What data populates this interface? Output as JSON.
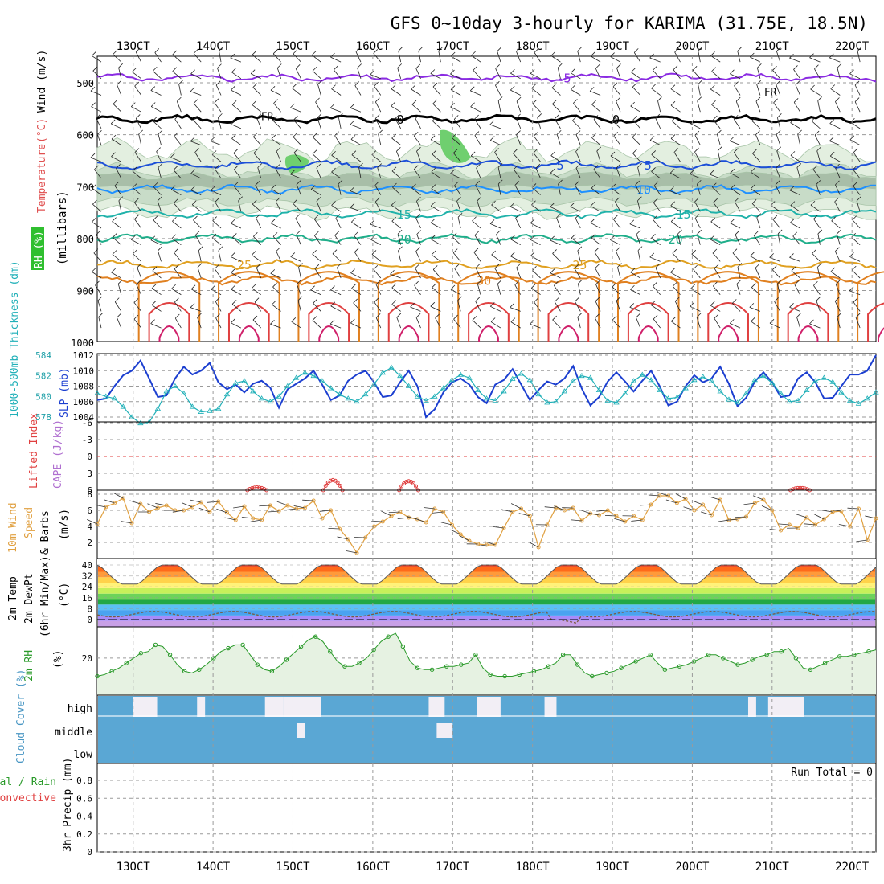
{
  "chart_data": {
    "type": "meteogram",
    "title": "GFS 0~10day 3-hourly for KARIMA (31.75E, 18.5N)",
    "x_ticks": [
      "13OCT",
      "14OCT",
      "15OCT",
      "16OCT",
      "17OCT",
      "18OCT",
      "19OCT",
      "20OCT",
      "21OCT",
      "22OCT"
    ],
    "x_range_days": [
      12.55,
      22.3
    ],
    "panels": {
      "upper": {
        "ylabel_parts": [
          "RH (%)",
          "Temperature",
          "(°C)",
          "Wind (m/s)"
        ],
        "ylabel_axis": "(millibars)",
        "ylim": [
          1000,
          450
        ],
        "y_ticks": [
          500,
          600,
          700,
          800,
          900,
          1000
        ],
        "freezing_label": "FR",
        "isotherms": [
          {
            "label": "-5",
            "pressure": 490,
            "color": "#8a2be2"
          },
          {
            "label": "0",
            "pressure": 570,
            "color": "#000000"
          },
          {
            "label": "5",
            "pressure": 658,
            "color": "#1c4fd8"
          },
          {
            "label": "10",
            "pressure": 705,
            "color": "#1e90ff"
          },
          {
            "label": "15",
            "pressure": 752,
            "color": "#20b2aa"
          },
          {
            "label": "20",
            "pressure": 800,
            "color": "#1fae8a"
          },
          {
            "label": "25",
            "pressure": 850,
            "color": "#e0a020"
          },
          {
            "label": "30",
            "pressure": 880,
            "color": "#e08020"
          }
        ]
      },
      "slp": {
        "ylabel_left": "1000-500mb Thickness (dm)",
        "ylabel_right": "SLP (mb)",
        "thick_ticks": [
          578,
          580,
          582,
          584
        ],
        "slp_ticks": [
          1004,
          1006,
          1008,
          1010,
          1012
        ],
        "thickness_range": [
          577,
          584
        ],
        "slp_range": [
          1003.6,
          1012
        ],
        "slp": [
          1006.2,
          1006.4,
          1008.0,
          1009.4,
          1010.0,
          1011.3,
          1009.0,
          1006.6,
          1006.8,
          1009.0,
          1010.5,
          1009.5,
          1010.0,
          1011.0,
          1008.5,
          1007.6,
          1008.2,
          1007.2,
          1008.3,
          1008.7,
          1007.8,
          1005.2,
          1007.6,
          1008.3,
          1009.0,
          1010.0,
          1008.2,
          1006.2,
          1006.8,
          1008.7,
          1009.5,
          1010.0,
          1008.5,
          1006.6,
          1006.8,
          1008.5,
          1010.0,
          1008.0,
          1004.0,
          1005.0,
          1007.2,
          1008.5,
          1009.0,
          1008.2,
          1006.6,
          1005.8,
          1008.2,
          1008.8,
          1010.2,
          1008.2,
          1006.2,
          1007.5,
          1008.6,
          1008.2,
          1009.0,
          1010.6,
          1007.7,
          1005.5,
          1006.6,
          1008.6,
          1009.8,
          1008.6,
          1007.3,
          1008.7,
          1010.0,
          1008.0,
          1005.5,
          1006.0,
          1008.0,
          1009.4,
          1008.5,
          1009.0,
          1010.5,
          1008.3,
          1005.4,
          1006.5,
          1008.6,
          1009.8,
          1008.5,
          1006.6,
          1006.8,
          1009.0,
          1009.8,
          1008.5,
          1006.4,
          1006.5,
          1008.0,
          1009.5,
          1009.5,
          1010.0,
          1012.0
        ],
        "thickness": [
          580.3,
          580.0,
          579.8,
          579.0,
          578.0,
          577.4,
          577.5,
          578.8,
          580.5,
          581.0,
          580.3,
          579.0,
          578.5,
          578.6,
          578.8,
          580.2,
          581.3,
          581.5,
          580.5,
          579.8,
          579.5,
          580.0,
          581.0,
          581.8,
          582.3,
          582.0,
          581.5,
          580.8,
          580.2,
          579.8,
          579.5,
          580.2,
          581.2,
          582.3,
          582.8,
          582.0,
          581.0,
          580.0,
          579.6,
          580.0,
          580.8,
          581.6,
          582.1,
          581.8,
          580.6,
          579.8,
          579.6,
          580.5,
          581.7,
          582.2,
          581.6,
          580.2,
          579.4,
          579.5,
          580.5,
          581.5,
          582.0,
          581.8,
          580.6,
          579.6,
          579.4,
          580.3,
          581.5,
          582.1,
          581.6,
          580.6,
          579.8,
          579.9,
          580.8,
          581.6,
          581.9,
          581.5,
          580.5,
          579.7,
          579.4,
          580.3,
          581.6,
          582.0,
          581.3,
          580.3,
          579.5,
          579.6,
          580.6,
          581.5,
          581.8,
          581.4,
          580.4,
          579.6,
          579.3,
          579.8,
          580.4
        ]
      },
      "li": {
        "ylabel_left": "Lifted Index",
        "ylabel_right": "CAPE (J/kg)",
        "y_ticks": [
          -6,
          -3,
          0,
          3,
          6
        ],
        "ylim": [
          6,
          -6
        ],
        "humps": [
          {
            "center": 14.55,
            "min": 5.5
          },
          {
            "center": 15.5,
            "min": 4.2
          },
          {
            "center": 16.45,
            "min": 4.4
          },
          {
            "center": 21.35,
            "min": 5.6
          }
        ]
      },
      "wind10": {
        "ylabel_parts": [
          "10m Wind",
          "Speed",
          "& Barbs",
          "(m/s)"
        ],
        "y_ticks": [
          2,
          4,
          6,
          8
        ],
        "ylim": [
          0,
          8.5
        ],
        "speed": [
          4.3,
          6.4,
          6.9,
          7.5,
          4.4,
          6.8,
          5.8,
          6.3,
          6.6,
          6.0,
          6.0,
          6.4,
          7.0,
          5.8,
          7.1,
          5.7,
          4.8,
          6.5,
          5.0,
          4.8,
          6.6,
          5.9,
          6.6,
          6.2,
          6.3,
          7.2,
          5.0,
          6.0,
          3.7,
          2.4,
          0.7,
          2.6,
          4.0,
          4.6,
          5.3,
          5.8,
          5.1,
          4.9,
          4.5,
          6.2,
          5.8,
          4.2,
          3.0,
          2.2,
          1.8,
          1.7,
          1.7,
          3.8,
          5.8,
          6.2,
          5.3,
          1.4,
          4.2,
          6.3,
          6.0,
          6.3,
          4.7,
          5.6,
          5.4,
          6.0,
          5.3,
          4.6,
          5.3,
          4.8,
          6.7,
          7.8,
          7.8,
          6.9,
          7.4,
          6.0,
          6.7,
          5.4,
          7.3,
          4.8,
          4.9,
          5.2,
          6.9,
          7.3,
          6.0,
          3.5,
          4.2,
          3.8,
          5.1,
          4.2,
          4.9,
          5.8,
          5.9,
          4.0,
          6.2,
          2.3,
          5.0
        ]
      },
      "temp": {
        "ylabel_parts": [
          "2m Temp",
          "2m DewPt",
          "(6hr Min/Max)",
          "(°C)"
        ],
        "y_ticks": [
          0,
          8,
          16,
          24,
          32,
          40
        ],
        "ylim": [
          -5,
          42
        ],
        "band_colors": [
          "#c8a0e6",
          "#a78bfa",
          "#4aa3f0",
          "#5bc0f5",
          "#22a845",
          "#6cd35a",
          "#c6f05a",
          "#fff27a",
          "#ffd24a",
          "#ff9a3a",
          "#ff6a1a",
          "#e02a10",
          "#8b0a0a"
        ],
        "daily": {
          "max_day": 40,
          "min_night": 26,
          "dew_day": 3,
          "dew_night": 6
        }
      },
      "rh": {
        "ylabel": "2m RH",
        "unit": "(%)",
        "y_ticks": [
          20
        ],
        "ylim": [
          0,
          42
        ],
        "values": [
          9,
          10,
          12,
          14,
          17,
          20,
          23,
          24,
          28,
          27,
          22,
          16,
          12,
          11,
          13,
          16,
          20,
          24,
          26,
          28,
          28,
          22,
          16,
          13,
          12,
          15,
          19,
          23,
          27,
          31,
          33,
          30,
          24,
          18,
          15,
          15,
          17,
          20,
          25,
          30,
          33,
          35,
          27,
          18,
          14,
          13,
          13,
          14,
          15,
          15,
          16,
          17,
          22,
          14,
          10,
          9,
          9,
          9,
          10,
          11,
          12,
          13,
          15,
          17,
          22,
          22,
          16,
          11,
          9,
          10,
          11,
          12,
          14,
          16,
          18,
          20,
          22,
          17,
          13,
          14,
          15,
          16,
          18,
          20,
          22,
          22,
          20,
          18,
          16,
          17,
          19,
          21,
          22,
          24,
          24,
          26,
          20,
          14,
          13,
          15,
          17,
          19,
          21,
          21,
          22,
          23,
          24,
          25
        ]
      },
      "cloud": {
        "ylabel": "Cloud Cover (%)",
        "levels": [
          "high",
          "middle",
          "low"
        ],
        "gaps_high": [
          [
            13.0,
            13.3
          ],
          [
            13.8,
            13.9
          ],
          [
            14.65,
            14.88
          ],
          [
            14.88,
            15.35
          ],
          [
            16.7,
            16.9
          ],
          [
            17.3,
            17.6
          ],
          [
            18.15,
            18.3
          ],
          [
            20.7,
            20.8
          ],
          [
            20.95,
            21.25
          ],
          [
            21.25,
            21.4
          ]
        ],
        "gaps_mid": [
          [
            15.05,
            15.15
          ],
          [
            16.8,
            17.0
          ]
        ]
      },
      "precip": {
        "ylabel_left": "Total / Rain",
        "ylabel_left2": "Convective",
        "ylabel": "3hr Precip (mm)",
        "y_ticks": [
          0,
          0.2,
          0.4,
          0.6,
          0.8
        ],
        "ylim": [
          0,
          0.9
        ],
        "run_total_label": "Run Total = 0"
      }
    }
  }
}
